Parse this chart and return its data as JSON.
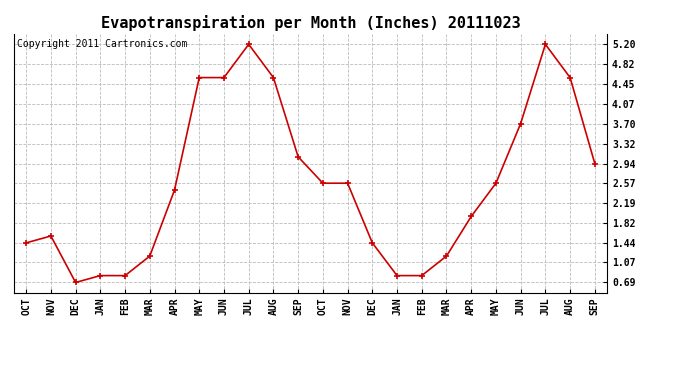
{
  "title": "Evapotranspiration per Month (Inches) 20111023",
  "copyright": "Copyright 2011 Cartronics.com",
  "months": [
    "OCT",
    "NOV",
    "DEC",
    "JAN",
    "FEB",
    "MAR",
    "APR",
    "MAY",
    "JUN",
    "JUL",
    "AUG",
    "SEP",
    "OCT",
    "NOV",
    "DEC",
    "JAN",
    "FEB",
    "MAR",
    "APR",
    "MAY",
    "JUN",
    "JUL",
    "AUG",
    "SEP"
  ],
  "values": [
    1.44,
    1.57,
    0.69,
    0.82,
    0.82,
    1.19,
    2.44,
    4.57,
    4.57,
    5.2,
    4.57,
    3.07,
    2.57,
    2.57,
    1.44,
    0.82,
    0.82,
    1.19,
    1.94,
    2.57,
    3.7,
    5.2,
    4.57,
    2.94
  ],
  "line_color": "#cc0000",
  "marker": "+",
  "marker_color": "#cc0000",
  "background_color": "#ffffff",
  "grid_color": "#bbbbbb",
  "yticks": [
    0.69,
    1.07,
    1.44,
    1.82,
    2.19,
    2.57,
    2.94,
    3.32,
    3.7,
    4.07,
    4.45,
    4.82,
    5.2
  ],
  "ylim": [
    0.5,
    5.4
  ],
  "title_fontsize": 11,
  "copyright_fontsize": 7
}
